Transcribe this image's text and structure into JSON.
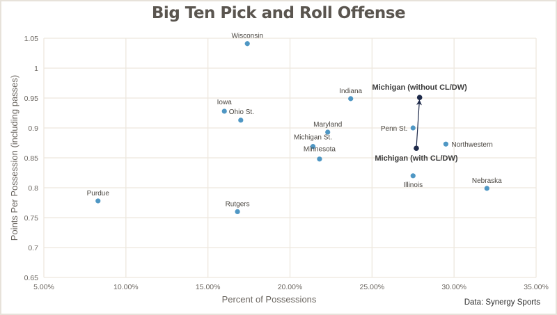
{
  "chart_data": {
    "type": "scatter",
    "title": "Big Ten Pick and Roll Offense",
    "xlabel": "Percent of Possessions",
    "ylabel": "Points Per Possession (including passes)",
    "source": "Data: Synergy Sports",
    "xlim": [
      5,
      35
    ],
    "ylim": [
      0.65,
      1.05
    ],
    "xticks": [
      5,
      10,
      15,
      20,
      25,
      30,
      35
    ],
    "xtick_labels": [
      "5.00%",
      "10.00%",
      "15.00%",
      "20.00%",
      "25.00%",
      "30.00%",
      "35.00%"
    ],
    "yticks": [
      0.65,
      0.7,
      0.75,
      0.8,
      0.85,
      0.9,
      0.95,
      1,
      1.05
    ],
    "ytick_labels": [
      "0.65",
      "0.7",
      "0.75",
      "0.8",
      "0.85",
      "0.9",
      "0.95",
      "1",
      "1.05"
    ],
    "grid": true,
    "colors": {
      "point": "#4f97c4",
      "highlight": "#1e2a4a",
      "grid": "#ede7de"
    },
    "points": [
      {
        "label": "Wisconsin",
        "x": 17.4,
        "y": 1.041,
        "label_pos": "above"
      },
      {
        "label": "Iowa",
        "x": 16.0,
        "y": 0.928,
        "label_pos": "above"
      },
      {
        "label": "Ohio St.",
        "x": 17.0,
        "y": 0.913,
        "label_pos": "above"
      },
      {
        "label": "Indiana",
        "x": 23.7,
        "y": 0.949,
        "label_pos": "above"
      },
      {
        "label": "Maryland",
        "x": 22.3,
        "y": 0.893,
        "label_pos": "above"
      },
      {
        "label": "Michigan St.",
        "x": 21.4,
        "y": 0.869,
        "label_pos": "above"
      },
      {
        "label": "Minnesota",
        "x": 21.8,
        "y": 0.848,
        "label_pos": "above"
      },
      {
        "label": "Penn St.",
        "x": 27.5,
        "y": 0.9,
        "label_pos": "left"
      },
      {
        "label": "Northwestern",
        "x": 29.5,
        "y": 0.873,
        "label_pos": "right"
      },
      {
        "label": "Illinois",
        "x": 27.5,
        "y": 0.82,
        "label_pos": "below"
      },
      {
        "label": "Nebraska",
        "x": 32.0,
        "y": 0.799,
        "label_pos": "above"
      },
      {
        "label": "Purdue",
        "x": 8.3,
        "y": 0.778,
        "label_pos": "above"
      },
      {
        "label": "Rutgers",
        "x": 16.8,
        "y": 0.76,
        "label_pos": "above"
      }
    ],
    "highlight_points": [
      {
        "label": "Michigan (with CL/DW)",
        "x": 27.7,
        "y": 0.866,
        "label_pos": "below"
      },
      {
        "label": "Michigan (without CL/DW)",
        "x": 27.9,
        "y": 0.951,
        "label_pos": "above"
      }
    ],
    "annotation_arrow": {
      "from": "Michigan (with CL/DW)",
      "to": "Michigan (without CL/DW)"
    }
  }
}
